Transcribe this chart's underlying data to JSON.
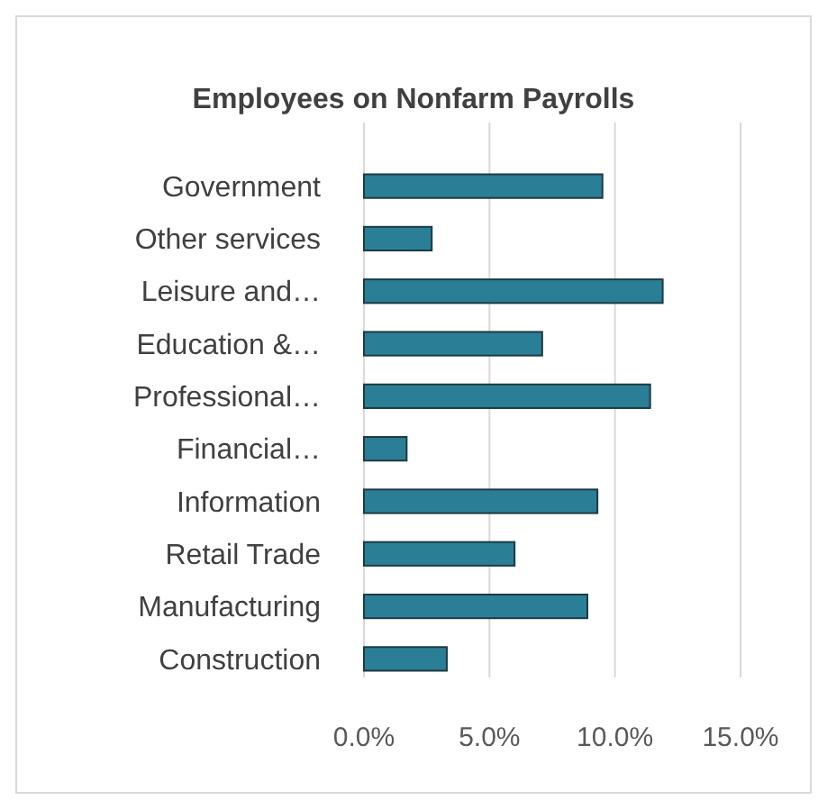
{
  "chart_data": {
    "type": "bar",
    "orientation": "horizontal",
    "title": "Employees on Nonfarm Payrolls",
    "categories": [
      "Government",
      "Other services",
      "Leisure and…",
      "Education &…",
      "Professional…",
      "Financial…",
      "Information",
      "Retail Trade",
      "Manufacturing",
      "Construction"
    ],
    "values": [
      9.5,
      2.7,
      11.9,
      7.1,
      11.4,
      1.7,
      9.3,
      6.0,
      8.9,
      3.3
    ],
    "color": "#2a7f96",
    "xlim": [
      0,
      15
    ],
    "xticks": [
      {
        "value": 0,
        "label": "0.0%"
      },
      {
        "value": 5,
        "label": "5.0%"
      },
      {
        "value": 10,
        "label": "10.0%"
      },
      {
        "value": 15,
        "label": "15.0%"
      }
    ],
    "grid": "x"
  }
}
